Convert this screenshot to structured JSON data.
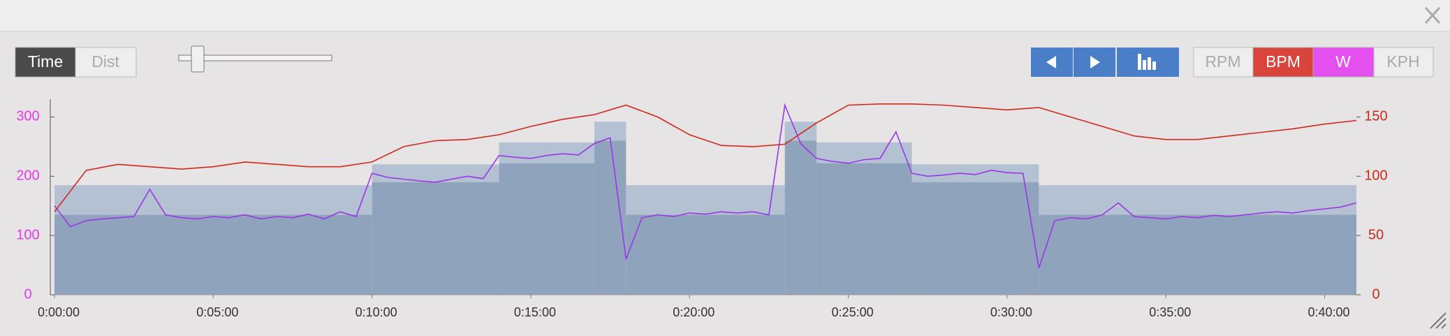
{
  "toolbar": {
    "modes": [
      "Time",
      "Dist"
    ],
    "rpm": "RPM",
    "kph": "KPH"
  },
  "chart_data": {
    "type": "line",
    "xlim": [
      0,
      2460
    ],
    "xticks": [
      {
        "value": 0,
        "label": "0:00:00"
      },
      {
        "value": 300,
        "label": "0:05:00"
      },
      {
        "value": 600,
        "label": "0:10:00"
      },
      {
        "value": 900,
        "label": "0:15:00"
      },
      {
        "value": 1200,
        "label": "0:20:00"
      },
      {
        "value": 1500,
        "label": "0:25:00"
      },
      {
        "value": 1800,
        "label": "0:30:00"
      },
      {
        "value": 2100,
        "label": "0:35:00"
      },
      {
        "value": 2400,
        "label": "0:40:00"
      }
    ],
    "ylim": [
      0,
      330
    ],
    "yticks": [
      0,
      100,
      200,
      300
    ],
    "ycolor": "#e03ce6",
    "y2lim": [
      0,
      165
    ],
    "y2ticks": [
      0,
      50,
      100,
      150
    ],
    "y2color": "#cc2a1a",
    "zones": {
      "color": "#8fa3bc",
      "band_color": "#b3c1d2",
      "x_start": [
        0,
        600,
        840,
        1020,
        1080,
        1380,
        1440,
        1620,
        1860
      ],
      "x_end": [
        600,
        840,
        1020,
        1080,
        1380,
        1440,
        1620,
        1860,
        2460
      ],
      "low": [
        135,
        190,
        222,
        260,
        135,
        260,
        222,
        190,
        135
      ],
      "high": [
        185,
        220,
        257,
        292,
        185,
        292,
        257,
        220,
        185
      ]
    },
    "series": [
      {
        "name": "W",
        "color": "#9a35e8",
        "x": [
          0,
          30,
          60,
          90,
          120,
          150,
          180,
          210,
          240,
          270,
          300,
          330,
          360,
          390,
          420,
          450,
          480,
          510,
          540,
          570,
          600,
          630,
          660,
          690,
          720,
          750,
          780,
          810,
          840,
          870,
          900,
          930,
          960,
          990,
          1020,
          1050,
          1080,
          1110,
          1140,
          1170,
          1200,
          1230,
          1260,
          1290,
          1320,
          1350,
          1380,
          1410,
          1440,
          1470,
          1500,
          1530,
          1560,
          1590,
          1620,
          1650,
          1680,
          1710,
          1740,
          1770,
          1800,
          1830,
          1860,
          1890,
          1920,
          1950,
          1980,
          2010,
          2040,
          2070,
          2100,
          2130,
          2160,
          2190,
          2220,
          2250,
          2280,
          2310,
          2340,
          2370,
          2400,
          2430,
          2460
        ],
        "values": [
          150,
          115,
          125,
          128,
          130,
          132,
          178,
          135,
          130,
          128,
          132,
          130,
          135,
          128,
          132,
          130,
          136,
          128,
          140,
          132,
          205,
          198,
          195,
          192,
          190,
          195,
          200,
          196,
          235,
          232,
          230,
          235,
          238,
          236,
          255,
          265,
          60,
          130,
          135,
          132,
          138,
          136,
          140,
          138,
          140,
          135,
          320,
          255,
          230,
          225,
          222,
          228,
          230,
          275,
          205,
          200,
          202,
          205,
          203,
          210,
          206,
          205,
          45,
          125,
          130,
          128,
          135,
          155,
          132,
          130,
          128,
          132,
          130,
          134,
          132,
          135,
          138,
          140,
          138,
          142,
          145,
          148,
          155
        ]
      },
      {
        "name": "BPM",
        "color": "#d0281c",
        "axis": "y2",
        "x": [
          0,
          60,
          120,
          180,
          240,
          300,
          360,
          420,
          480,
          540,
          600,
          660,
          720,
          780,
          840,
          900,
          960,
          1020,
          1080,
          1140,
          1200,
          1260,
          1320,
          1380,
          1440,
          1500,
          1560,
          1620,
          1680,
          1740,
          1800,
          1860,
          1920,
          1980,
          2040,
          2100,
          2160,
          2220,
          2280,
          2340,
          2400,
          2460
        ],
        "values": [
          70,
          105,
          110,
          108,
          106,
          108,
          112,
          110,
          108,
          108,
          112,
          125,
          130,
          131,
          135,
          142,
          148,
          152,
          160,
          150,
          135,
          126,
          125,
          127,
          145,
          160,
          161,
          161,
          160,
          158,
          156,
          158,
          150,
          142,
          134,
          131,
          131,
          134,
          137,
          140,
          144,
          147
        ]
      }
    ]
  }
}
